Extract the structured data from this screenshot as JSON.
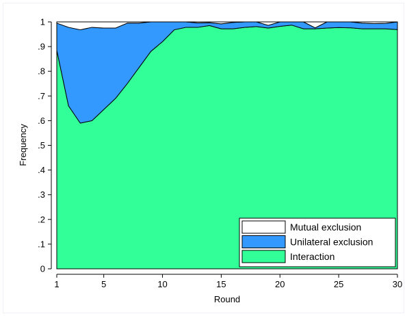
{
  "chart_data": {
    "type": "area",
    "stacked": true,
    "xlabel": "Round",
    "ylabel": "Frequency",
    "xlim": [
      1,
      30
    ],
    "ylim": [
      0,
      1
    ],
    "xticks": [
      1,
      5,
      10,
      15,
      20,
      25,
      30
    ],
    "yticks": [
      {
        "value": 0,
        "label": "0"
      },
      {
        "value": 0.1,
        "label": ".1"
      },
      {
        "value": 0.2,
        "label": ".2"
      },
      {
        "value": 0.3,
        "label": ".3"
      },
      {
        "value": 0.4,
        "label": ".4"
      },
      {
        "value": 0.5,
        "label": ".5"
      },
      {
        "value": 0.6,
        "label": ".6"
      },
      {
        "value": 0.7,
        "label": ".7"
      },
      {
        "value": 0.8,
        "label": ".8"
      },
      {
        "value": 0.9,
        "label": ".9"
      },
      {
        "value": 1,
        "label": "1"
      }
    ],
    "grid": false,
    "legend_position": "bottom-right",
    "x": [
      1,
      2,
      3,
      4,
      5,
      6,
      7,
      8,
      9,
      10,
      11,
      12,
      13,
      14,
      15,
      16,
      17,
      18,
      19,
      20,
      21,
      22,
      23,
      24,
      25,
      26,
      27,
      28,
      29,
      30
    ],
    "series": [
      {
        "name": "Interaction",
        "color": "#33ff99",
        "values": [
          0.885,
          0.66,
          0.59,
          0.6,
          0.645,
          0.69,
          0.75,
          0.815,
          0.88,
          0.92,
          0.968,
          0.978,
          0.978,
          0.985,
          0.972,
          0.972,
          0.978,
          0.981,
          0.975,
          0.982,
          0.987,
          0.972,
          0.972,
          0.975,
          0.977,
          0.976,
          0.972,
          0.972,
          0.972,
          0.969
        ]
      },
      {
        "name": "Unilateral exclusion",
        "color": "#3399ff",
        "values": [
          0.11,
          0.318,
          0.378,
          0.378,
          0.33,
          0.285,
          0.245,
          0.18,
          0.12,
          0.08,
          0.032,
          0.022,
          0.018,
          0.012,
          0.02,
          0.026,
          0.022,
          0.019,
          0.011,
          0.018,
          0.013,
          0.028,
          0.004,
          0.025,
          0.023,
          0.024,
          0.023,
          0.021,
          0.022,
          0.031
        ]
      },
      {
        "name": "Mutual exclusion",
        "color": "#ffffff",
        "values": [
          0.005,
          0.022,
          0.032,
          0.022,
          0.025,
          0.025,
          0.005,
          0.005,
          0.0,
          0.0,
          0.0,
          0.0,
          0.004,
          0.003,
          0.008,
          0.002,
          0.0,
          0.0,
          0.014,
          0.0,
          0.0,
          0.0,
          0.024,
          0.0,
          0.0,
          0.0,
          0.005,
          0.007,
          0.006,
          0.0
        ]
      }
    ]
  }
}
